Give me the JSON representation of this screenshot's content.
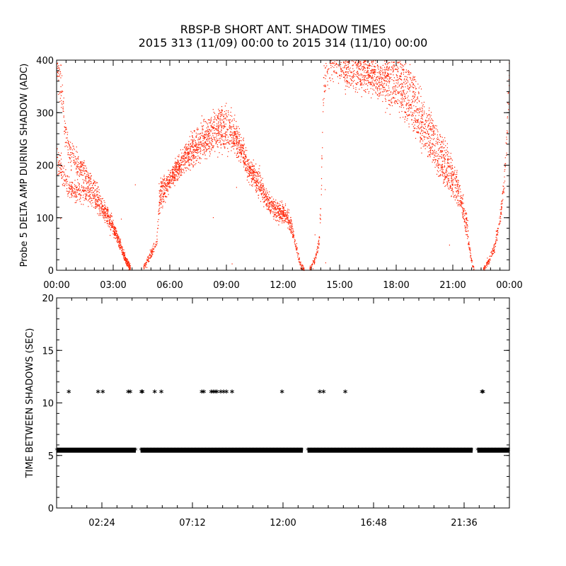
{
  "title_line1": "RBSP-B SHORT ANT. SHADOW TIMES",
  "title_line2": "2015 313 (11/09) 00:00 to 2015 314 (11/10) 00:00",
  "chart_data": [
    {
      "type": "scatter",
      "ylabel": "Probe 5 DELTA AMP DURING SHADOW (ADC)",
      "xlabel": "",
      "x_unit": "hours",
      "xlim": [
        0,
        24
      ],
      "ylim": [
        0,
        400
      ],
      "x_tick_values": [
        0,
        3,
        6,
        9,
        12,
        15,
        18,
        21,
        24
      ],
      "x_tick_labels": [
        "00:00",
        "03:00",
        "06:00",
        "09:00",
        "12:00",
        "15:00",
        "18:00",
        "21:00",
        "00:00"
      ],
      "y_ticks": [
        0,
        100,
        200,
        300,
        400
      ],
      "color": "#ff2000",
      "series": [
        {
          "profile": [
            [
              0.0,
              400
            ],
            [
              0.25,
              340
            ],
            [
              0.45,
              260
            ],
            [
              0.7,
              225
            ],
            [
              1.0,
              210
            ],
            [
              1.4,
              190
            ],
            [
              1.9,
              160
            ],
            [
              2.4,
              125
            ],
            [
              2.9,
              90
            ],
            [
              3.3,
              55
            ],
            [
              3.6,
              25
            ],
            [
              3.9,
              5
            ]
          ]
        },
        {
          "profile": [
            [
              0.0,
              215
            ],
            [
              0.3,
              185
            ],
            [
              0.6,
              160
            ],
            [
              1.0,
              150
            ],
            [
              1.5,
              150
            ],
            [
              2.0,
              135
            ],
            [
              2.5,
              110
            ],
            [
              3.0,
              80
            ],
            [
              3.4,
              45
            ],
            [
              3.7,
              15
            ],
            [
              3.9,
              2
            ]
          ]
        },
        {
          "profile": [
            [
              4.6,
              5
            ],
            [
              4.9,
              25
            ],
            [
              5.3,
              55
            ],
            [
              5.4,
              120
            ],
            [
              5.7,
              150
            ],
            [
              6.2,
              185
            ],
            [
              6.8,
              210
            ],
            [
              7.5,
              230
            ],
            [
              8.2,
              248
            ],
            [
              8.8,
              258
            ],
            [
              9.4,
              250
            ],
            [
              9.9,
              225
            ],
            [
              10.1,
              195
            ],
            [
              10.7,
              175
            ],
            [
              11.1,
              140
            ],
            [
              11.6,
              118
            ],
            [
              12.1,
              115
            ],
            [
              12.4,
              90
            ],
            [
              12.7,
              40
            ],
            [
              12.9,
              12
            ],
            [
              13.1,
              2
            ]
          ]
        },
        {
          "profile": [
            [
              5.4,
              150
            ],
            [
              5.9,
              170
            ],
            [
              6.5,
              200
            ],
            [
              7.2,
              240
            ],
            [
              8.0,
              268
            ],
            [
              8.7,
              290
            ],
            [
              9.2,
              280
            ],
            [
              9.7,
              240
            ],
            [
              10.0,
              210
            ],
            [
              10.6,
              165
            ],
            [
              11.1,
              130
            ],
            [
              11.7,
              108
            ],
            [
              12.2,
              100
            ],
            [
              12.5,
              70
            ]
          ]
        },
        {
          "profile": [
            [
              13.4,
              2
            ],
            [
              13.7,
              22
            ],
            [
              13.9,
              55
            ],
            [
              14.0,
              140
            ],
            [
              14.1,
              320
            ],
            [
              14.2,
              380
            ],
            [
              14.5,
              395
            ],
            [
              15.2,
              400
            ],
            [
              16.2,
              400
            ],
            [
              17.0,
              360
            ],
            [
              17.6,
              345
            ],
            [
              18.2,
              330
            ],
            [
              18.8,
              300
            ],
            [
              19.4,
              260
            ],
            [
              20.0,
              220
            ],
            [
              20.6,
              180
            ],
            [
              21.2,
              145
            ],
            [
              21.5,
              110
            ],
            [
              21.8,
              55
            ],
            [
              22.0,
              15
            ],
            [
              22.1,
              3
            ]
          ]
        },
        {
          "profile": [
            [
              15.2,
              390
            ],
            [
              16.0,
              370
            ],
            [
              16.8,
              370
            ],
            [
              17.5,
              385
            ],
            [
              18.2,
              385
            ],
            [
              18.8,
              345
            ],
            [
              19.4,
              305
            ],
            [
              20.0,
              265
            ],
            [
              20.6,
              220
            ],
            [
              21.1,
              175
            ],
            [
              21.5,
              130
            ],
            [
              21.8,
              80
            ]
          ]
        },
        {
          "profile": [
            [
              22.6,
              3
            ],
            [
              22.9,
              18
            ],
            [
              23.2,
              45
            ],
            [
              23.5,
              100
            ],
            [
              23.7,
              170
            ],
            [
              23.85,
              260
            ],
            [
              24.0,
              400
            ]
          ]
        }
      ]
    },
    {
      "type": "scatter",
      "ylabel": "TIME BETWEEN SHADOWS (SEC)",
      "xlabel": "",
      "x_unit": "hours",
      "xlim": [
        0,
        24
      ],
      "ylim": [
        0,
        20
      ],
      "x_tick_values": [
        2.4,
        7.2,
        12.0,
        16.8,
        21.6
      ],
      "x_tick_labels": [
        "02:24",
        "07:12",
        "12:00",
        "16:48",
        "21:36"
      ],
      "y_ticks": [
        0,
        5,
        10,
        15,
        20
      ],
      "color": "#000000",
      "marker": "*",
      "baseline_value": 5.5,
      "baseline_segments": [
        [
          0.0,
          4.2
        ],
        [
          4.45,
          13.05
        ],
        [
          13.3,
          22.05
        ],
        [
          22.3,
          24.0
        ]
      ],
      "points_11": [
        0.65,
        2.2,
        2.45,
        3.8,
        3.9,
        4.5,
        4.55,
        5.2,
        5.55,
        7.7,
        7.8,
        8.2,
        8.3,
        8.4,
        8.5,
        8.7,
        8.85,
        9.0,
        9.3,
        11.95,
        13.95,
        14.15,
        15.3,
        22.55,
        22.6
      ]
    }
  ]
}
